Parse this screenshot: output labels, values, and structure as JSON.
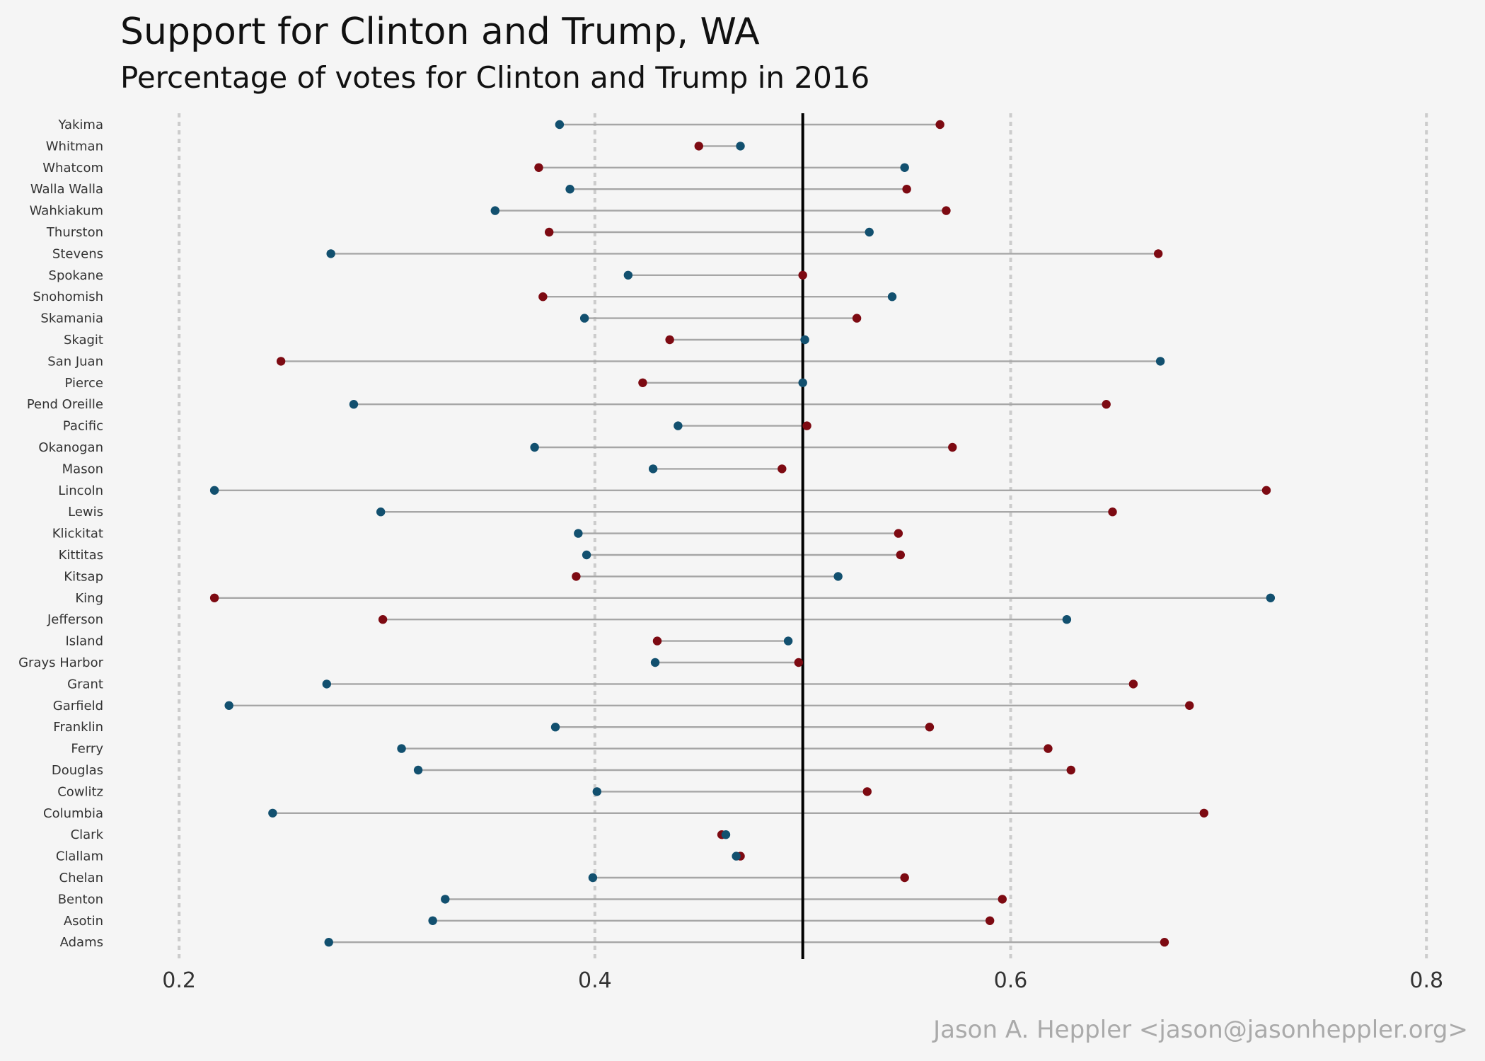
{
  "chart_data": {
    "type": "dumbbell",
    "title": "Support for Clinton and Trump,  WA",
    "subtitle": "Percentage of votes for Clinton and Trump in 2016",
    "caption": "Jason A. Heppler <jason@jasonheppler.org>",
    "xlim": [
      0.17,
      0.82
    ],
    "xticks": [
      0.2,
      0.4,
      0.6,
      0.8
    ],
    "reference_line": 0.5,
    "grid": "vertical dashed at ticks",
    "colors": {
      "clinton": "#12506f",
      "trump": "#7d0a12"
    },
    "counties": [
      {
        "name": "Yakima",
        "clinton": 0.383,
        "trump": 0.566
      },
      {
        "name": "Whitman",
        "clinton": 0.47,
        "trump": 0.45
      },
      {
        "name": "Whatcom",
        "clinton": 0.549,
        "trump": 0.373
      },
      {
        "name": "Walla Walla",
        "clinton": 0.388,
        "trump": 0.55
      },
      {
        "name": "Wahkiakum",
        "clinton": 0.352,
        "trump": 0.569
      },
      {
        "name": "Thurston",
        "clinton": 0.532,
        "trump": 0.378
      },
      {
        "name": "Stevens",
        "clinton": 0.273,
        "trump": 0.671
      },
      {
        "name": "Spokane",
        "clinton": 0.416,
        "trump": 0.5
      },
      {
        "name": "Snohomish",
        "clinton": 0.543,
        "trump": 0.375
      },
      {
        "name": "Skamania",
        "clinton": 0.395,
        "trump": 0.526
      },
      {
        "name": "Skagit",
        "clinton": 0.501,
        "trump": 0.436
      },
      {
        "name": "San Juan",
        "clinton": 0.672,
        "trump": 0.249
      },
      {
        "name": "Pierce",
        "clinton": 0.5,
        "trump": 0.423
      },
      {
        "name": "Pend Oreille",
        "clinton": 0.284,
        "trump": 0.646
      },
      {
        "name": "Pacific",
        "clinton": 0.44,
        "trump": 0.502
      },
      {
        "name": "Okanogan",
        "clinton": 0.371,
        "trump": 0.572
      },
      {
        "name": "Mason",
        "clinton": 0.428,
        "trump": 0.49
      },
      {
        "name": "Lincoln",
        "clinton": 0.217,
        "trump": 0.723
      },
      {
        "name": "Lewis",
        "clinton": 0.297,
        "trump": 0.649
      },
      {
        "name": "Klickitat",
        "clinton": 0.392,
        "trump": 0.546
      },
      {
        "name": "Kittitas",
        "clinton": 0.396,
        "trump": 0.547
      },
      {
        "name": "Kitsap",
        "clinton": 0.517,
        "trump": 0.391
      },
      {
        "name": "King",
        "clinton": 0.725,
        "trump": 0.217
      },
      {
        "name": "Jefferson",
        "clinton": 0.627,
        "trump": 0.298
      },
      {
        "name": "Island",
        "clinton": 0.493,
        "trump": 0.43
      },
      {
        "name": "Grays Harbor",
        "clinton": 0.429,
        "trump": 0.498
      },
      {
        "name": "Grant",
        "clinton": 0.271,
        "trump": 0.659
      },
      {
        "name": "Garfield",
        "clinton": 0.224,
        "trump": 0.686
      },
      {
        "name": "Franklin",
        "clinton": 0.381,
        "trump": 0.561
      },
      {
        "name": "Ferry",
        "clinton": 0.307,
        "trump": 0.618
      },
      {
        "name": "Douglas",
        "clinton": 0.315,
        "trump": 0.629
      },
      {
        "name": "Cowlitz",
        "clinton": 0.401,
        "trump": 0.531
      },
      {
        "name": "Columbia",
        "clinton": 0.245,
        "trump": 0.693
      },
      {
        "name": "Clark",
        "clinton": 0.463,
        "trump": 0.461
      },
      {
        "name": "Clallam",
        "clinton": 0.468,
        "trump": 0.47
      },
      {
        "name": "Chelan",
        "clinton": 0.399,
        "trump": 0.549
      },
      {
        "name": "Benton",
        "clinton": 0.328,
        "trump": 0.596
      },
      {
        "name": "Asotin",
        "clinton": 0.322,
        "trump": 0.59
      },
      {
        "name": "Adams",
        "clinton": 0.272,
        "trump": 0.674
      }
    ]
  }
}
